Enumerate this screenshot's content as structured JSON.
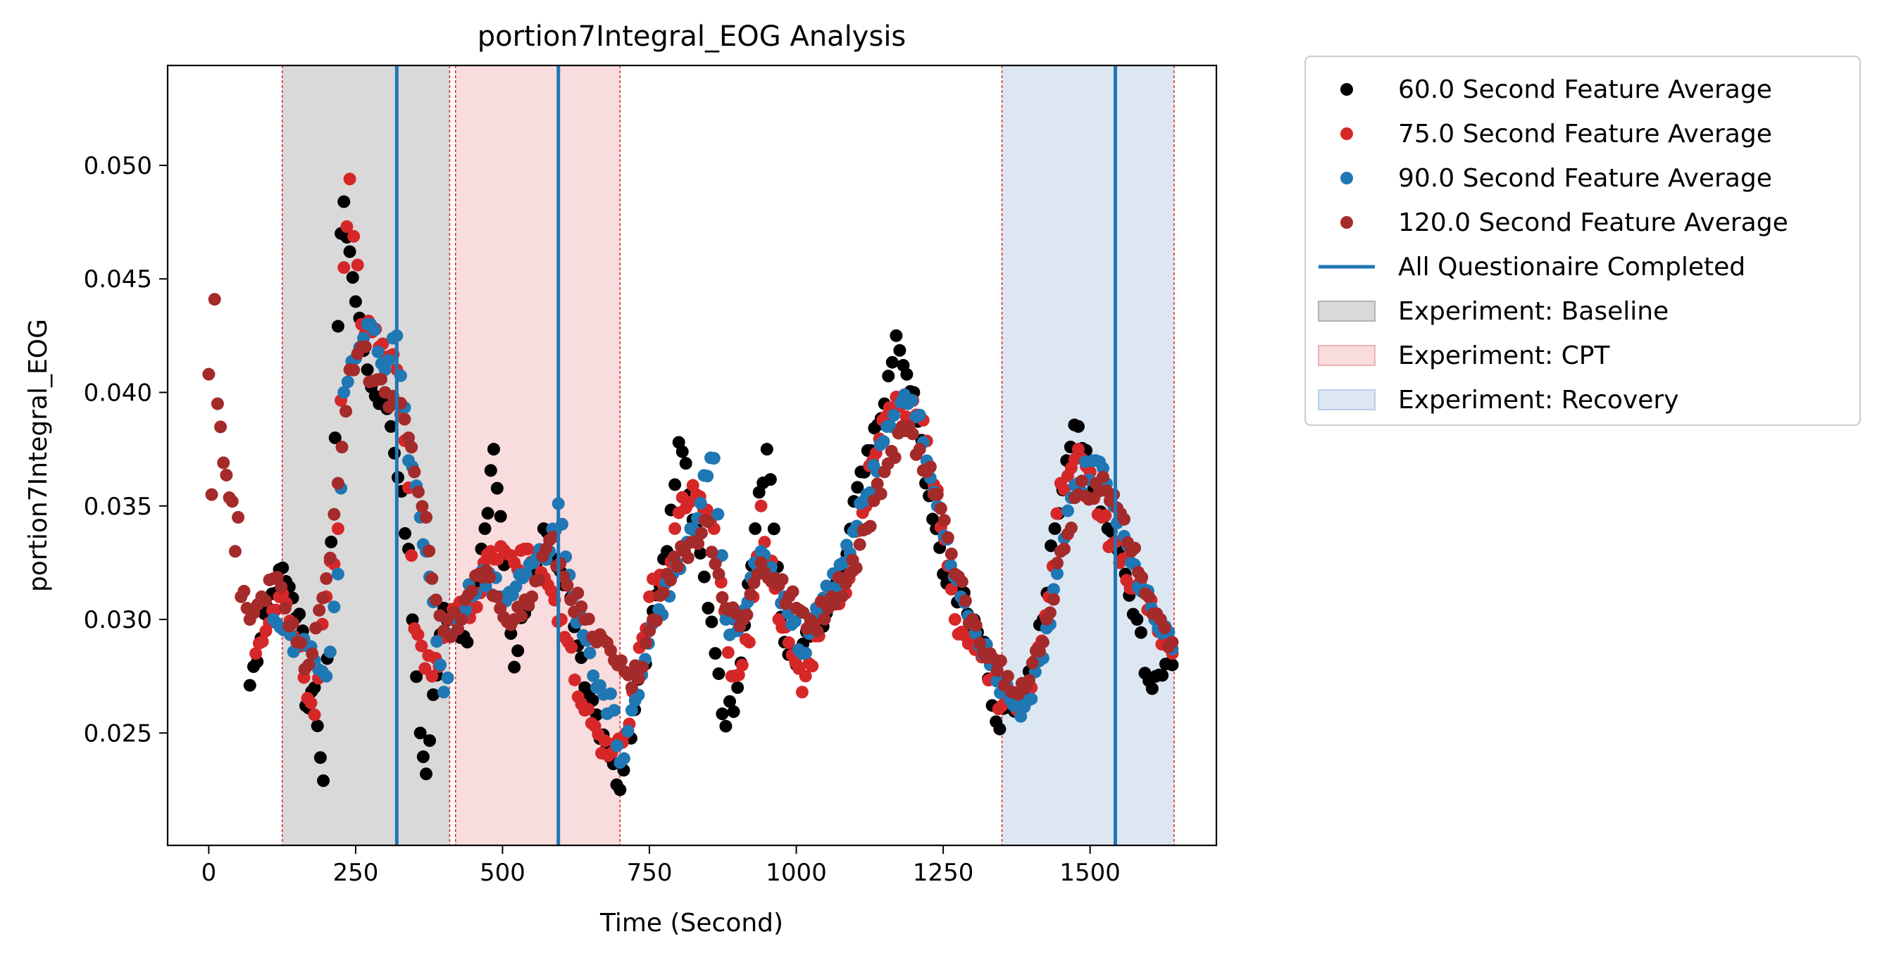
{
  "chart_data": {
    "type": "scatter",
    "title": "portion7Integral_EOG Analysis",
    "xlabel": "Time (Second)",
    "ylabel": "portion7Integral_EOG",
    "xlim": [
      -70,
      1715
    ],
    "ylim": [
      0.02005,
      0.0544
    ],
    "xticks": [
      0,
      250,
      500,
      750,
      1000,
      1250,
      1500
    ],
    "xtick_labels": [
      "0",
      "250",
      "500",
      "750",
      "1000",
      "1250",
      "1500"
    ],
    "yticks": [
      0.025,
      0.03,
      0.035,
      0.04,
      0.045,
      0.05
    ],
    "ytick_labels": [
      "0.025",
      "0.030",
      "0.035",
      "0.040",
      "0.045",
      "0.050"
    ],
    "grid": false,
    "legend_position": "outside-right-top",
    "regions": [
      {
        "name": "Experiment: Baseline",
        "x0": 125,
        "x1": 410,
        "color": "#d9d9d9"
      },
      {
        "name": "Experiment: CPT",
        "x0": 420,
        "x1": 700,
        "color": "#f9dcdd"
      },
      {
        "name": "Experiment: Recovery",
        "x0": 1350,
        "x1": 1643,
        "color": "#dce7f2"
      }
    ],
    "boundary_lines": [
      125,
      410,
      420,
      700,
      1350,
      1643
    ],
    "boundary_color": "#d62728",
    "vlines": {
      "name": "All Questionaire Completed",
      "x": [
        320,
        595,
        1543
      ],
      "color": "#1f77b4"
    },
    "series": [
      {
        "name": "60.0 Second Feature Average",
        "color": "#000000",
        "points": [
          [
            70,
            0.0271
          ],
          [
            120,
            0.0322
          ],
          [
            160,
            0.0295
          ],
          [
            165,
            0.0262
          ],
          [
            180,
            0.027
          ],
          [
            195,
            0.0229
          ],
          [
            215,
            0.038
          ],
          [
            225,
            0.047
          ],
          [
            230,
            0.0484
          ],
          [
            240,
            0.0462
          ],
          [
            250,
            0.044
          ],
          [
            270,
            0.041
          ],
          [
            290,
            0.0395
          ],
          [
            310,
            0.0385
          ],
          [
            340,
            0.0331
          ],
          [
            360,
            0.025
          ],
          [
            370,
            0.0232
          ],
          [
            400,
            0.0305
          ],
          [
            440,
            0.029
          ],
          [
            470,
            0.034
          ],
          [
            485,
            0.0375
          ],
          [
            520,
            0.0279
          ],
          [
            550,
            0.032
          ],
          [
            570,
            0.034
          ],
          [
            610,
            0.0315
          ],
          [
            640,
            0.027
          ],
          [
            660,
            0.0258
          ],
          [
            700,
            0.0225
          ],
          [
            750,
            0.0295
          ],
          [
            780,
            0.033
          ],
          [
            800,
            0.0378
          ],
          [
            830,
            0.034
          ],
          [
            850,
            0.0305
          ],
          [
            880,
            0.0253
          ],
          [
            900,
            0.027
          ],
          [
            930,
            0.034
          ],
          [
            950,
            0.0375
          ],
          [
            980,
            0.029
          ],
          [
            1000,
            0.028
          ],
          [
            1040,
            0.03
          ],
          [
            1080,
            0.032
          ],
          [
            1110,
            0.0365
          ],
          [
            1150,
            0.0395
          ],
          [
            1170,
            0.0425
          ],
          [
            1200,
            0.04
          ],
          [
            1220,
            0.036
          ],
          [
            1250,
            0.032
          ],
          [
            1280,
            0.031
          ],
          [
            1320,
            0.029
          ],
          [
            1340,
            0.0255
          ],
          [
            1390,
            0.0265
          ],
          [
            1420,
            0.03
          ],
          [
            1440,
            0.034
          ],
          [
            1460,
            0.037
          ],
          [
            1480,
            0.0385
          ],
          [
            1500,
            0.0365
          ],
          [
            1530,
            0.034
          ],
          [
            1560,
            0.032
          ],
          [
            1580,
            0.03
          ],
          [
            1600,
            0.0273
          ],
          [
            1640,
            0.028
          ]
        ]
      },
      {
        "name": "75.0 Second Feature Average",
        "color": "#d62728",
        "points": [
          [
            80,
            0.0285
          ],
          [
            120,
            0.031
          ],
          [
            150,
            0.029
          ],
          [
            180,
            0.0258
          ],
          [
            200,
            0.031
          ],
          [
            220,
            0.034
          ],
          [
            230,
            0.0455
          ],
          [
            240,
            0.0494
          ],
          [
            260,
            0.043
          ],
          [
            290,
            0.042
          ],
          [
            320,
            0.041
          ],
          [
            340,
            0.0358
          ],
          [
            350,
            0.0296
          ],
          [
            380,
            0.0275
          ],
          [
            410,
            0.03
          ],
          [
            450,
            0.0305
          ],
          [
            480,
            0.033
          ],
          [
            520,
            0.0325
          ],
          [
            560,
            0.033
          ],
          [
            600,
            0.03
          ],
          [
            640,
            0.026
          ],
          [
            680,
            0.024
          ],
          [
            710,
            0.025
          ],
          [
            750,
            0.031
          ],
          [
            780,
            0.032
          ],
          [
            800,
            0.0347
          ],
          [
            830,
            0.0355
          ],
          [
            860,
            0.034
          ],
          [
            890,
            0.0275
          ],
          [
            920,
            0.029
          ],
          [
            940,
            0.035
          ],
          [
            970,
            0.03
          ],
          [
            1010,
            0.0268
          ],
          [
            1050,
            0.0305
          ],
          [
            1090,
            0.0318
          ],
          [
            1130,
            0.037
          ],
          [
            1170,
            0.0398
          ],
          [
            1210,
            0.039
          ],
          [
            1240,
            0.0357
          ],
          [
            1270,
            0.03
          ],
          [
            1310,
            0.029
          ],
          [
            1350,
            0.0262
          ],
          [
            1400,
            0.027
          ],
          [
            1430,
            0.031
          ],
          [
            1450,
            0.036
          ],
          [
            1480,
            0.0375
          ],
          [
            1500,
            0.0365
          ],
          [
            1520,
            0.0345
          ],
          [
            1550,
            0.0325
          ],
          [
            1580,
            0.0315
          ],
          [
            1610,
            0.03
          ],
          [
            1640,
            0.0285
          ]
        ]
      },
      {
        "name": "90.0 Second Feature Average",
        "color": "#1f77b4",
        "points": [
          [
            110,
            0.03
          ],
          [
            150,
            0.029
          ],
          [
            180,
            0.0282
          ],
          [
            200,
            0.0275
          ],
          [
            220,
            0.032
          ],
          [
            230,
            0.04
          ],
          [
            250,
            0.0415
          ],
          [
            270,
            0.043
          ],
          [
            300,
            0.041
          ],
          [
            320,
            0.0425
          ],
          [
            340,
            0.037
          ],
          [
            360,
            0.0345
          ],
          [
            370,
            0.033
          ],
          [
            400,
            0.0268
          ],
          [
            420,
            0.03
          ],
          [
            460,
            0.032
          ],
          [
            500,
            0.031
          ],
          [
            540,
            0.032
          ],
          [
            580,
            0.033
          ],
          [
            595,
            0.0351
          ],
          [
            620,
            0.031
          ],
          [
            660,
            0.027
          ],
          [
            690,
            0.026
          ],
          [
            700,
            0.0237
          ],
          [
            720,
            0.026
          ],
          [
            760,
            0.03
          ],
          [
            790,
            0.032
          ],
          [
            820,
            0.034
          ],
          [
            860,
            0.0371
          ],
          [
            880,
            0.03
          ],
          [
            900,
            0.0295
          ],
          [
            940,
            0.033
          ],
          [
            980,
            0.031
          ],
          [
            1010,
            0.0285
          ],
          [
            1040,
            0.0305
          ],
          [
            1080,
            0.0325
          ],
          [
            1120,
            0.0355
          ],
          [
            1160,
            0.0385
          ],
          [
            1190,
            0.0395
          ],
          [
            1210,
            0.039
          ],
          [
            1240,
            0.035
          ],
          [
            1280,
            0.031
          ],
          [
            1330,
            0.028
          ],
          [
            1370,
            0.0262
          ],
          [
            1400,
            0.0265
          ],
          [
            1420,
            0.0283
          ],
          [
            1450,
            0.033
          ],
          [
            1480,
            0.036
          ],
          [
            1510,
            0.037
          ],
          [
            1540,
            0.035
          ],
          [
            1570,
            0.0325
          ],
          [
            1610,
            0.03
          ],
          [
            1640,
            0.0287
          ]
        ]
      },
      {
        "name": "120.0 Second Feature Average",
        "color": "#a52a2a",
        "points": [
          [
            0,
            0.0408
          ],
          [
            5,
            0.0355
          ],
          [
            10,
            0.0441
          ],
          [
            15,
            0.0395
          ],
          [
            25,
            0.0369
          ],
          [
            40,
            0.0352
          ],
          [
            45,
            0.033
          ],
          [
            50,
            0.0345
          ],
          [
            55,
            0.031
          ],
          [
            70,
            0.03
          ],
          [
            90,
            0.031
          ],
          [
            110,
            0.0318
          ],
          [
            130,
            0.0305
          ],
          [
            150,
            0.029
          ],
          [
            170,
            0.028
          ],
          [
            200,
            0.0318
          ],
          [
            220,
            0.036
          ],
          [
            240,
            0.041
          ],
          [
            260,
            0.042
          ],
          [
            280,
            0.0405
          ],
          [
            300,
            0.04
          ],
          [
            320,
            0.0395
          ],
          [
            340,
            0.038
          ],
          [
            350,
            0.0365
          ],
          [
            370,
            0.0345
          ],
          [
            380,
            0.0318
          ],
          [
            400,
            0.0295
          ],
          [
            430,
            0.03
          ],
          [
            460,
            0.032
          ],
          [
            490,
            0.031
          ],
          [
            520,
            0.03
          ],
          [
            550,
            0.031
          ],
          [
            580,
            0.0335
          ],
          [
            610,
            0.0315
          ],
          [
            640,
            0.03
          ],
          [
            660,
            0.029
          ],
          [
            690,
            0.0282
          ],
          [
            720,
            0.027
          ],
          [
            750,
            0.0295
          ],
          [
            780,
            0.032
          ],
          [
            810,
            0.033
          ],
          [
            850,
            0.0343
          ],
          [
            880,
            0.0305
          ],
          [
            910,
            0.03
          ],
          [
            940,
            0.0325
          ],
          [
            970,
            0.0315
          ],
          [
            1000,
            0.0305
          ],
          [
            1030,
            0.0298
          ],
          [
            1060,
            0.031
          ],
          [
            1090,
            0.032
          ],
          [
            1120,
            0.034
          ],
          [
            1150,
            0.0365
          ],
          [
            1180,
            0.0385
          ],
          [
            1210,
            0.0375
          ],
          [
            1240,
            0.0355
          ],
          [
            1270,
            0.032
          ],
          [
            1300,
            0.03
          ],
          [
            1330,
            0.0285
          ],
          [
            1360,
            0.0275
          ],
          [
            1390,
            0.027
          ],
          [
            1420,
            0.029
          ],
          [
            1450,
            0.033
          ],
          [
            1480,
            0.0355
          ],
          [
            1510,
            0.036
          ],
          [
            1540,
            0.0355
          ],
          [
            1570,
            0.033
          ],
          [
            1600,
            0.031
          ],
          [
            1620,
            0.03
          ],
          [
            1640,
            0.029
          ]
        ]
      }
    ],
    "legend": [
      {
        "label": "60.0 Second Feature Average",
        "kind": "marker",
        "color": "#000000"
      },
      {
        "label": "75.0 Second Feature Average",
        "kind": "marker",
        "color": "#d62728"
      },
      {
        "label": "90.0 Second Feature Average",
        "kind": "marker",
        "color": "#1f77b4"
      },
      {
        "label": "120.0 Second Feature Average",
        "kind": "marker",
        "color": "#a52a2a"
      },
      {
        "label": "All Questionaire Completed",
        "kind": "line",
        "color": "#1f77b4"
      },
      {
        "label": "Experiment: Baseline",
        "kind": "patch",
        "color": "#d9d9d9",
        "edge": "#b3b3b3"
      },
      {
        "label": "Experiment: CPT",
        "kind": "patch",
        "color": "#f9dcdd",
        "edge": "#f2b2b4"
      },
      {
        "label": "Experiment: Recovery",
        "kind": "patch",
        "color": "#dce7f2",
        "edge": "#b8cfe6"
      }
    ]
  }
}
